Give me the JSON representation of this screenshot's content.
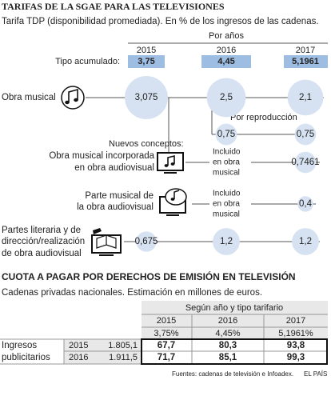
{
  "header": {
    "title": "TARIFAS DE LA SGAE PARA LAS TELEVISIONES",
    "subtitle": "Tarifa TDP (disponibilidad promediada). En % de los ingresos de las cadenas."
  },
  "tariffs": {
    "group_label": "Por años",
    "years": [
      "2015",
      "2016",
      "2017"
    ],
    "accumulated_label": "Tipo acumulado:",
    "accumulated": [
      "3,75",
      "4,45",
      "5,1961"
    ],
    "reproduction_label": "Por reproducción",
    "new_concepts_label": "Nuevos conceptos:",
    "rows": [
      {
        "label_lines": [
          "Obra musical"
        ],
        "values": [
          {
            "value": 3.075,
            "label": "3,075"
          },
          {
            "value": 2.5,
            "label": "2,5"
          },
          {
            "value": 2.1,
            "label": "2,1"
          }
        ],
        "reproduction": [
          {
            "value": 0.75,
            "label": "0,75"
          },
          {
            "value": 0.75,
            "label": "0,75"
          }
        ]
      },
      {
        "label_lines": [
          "Obra musical incorporada",
          "en obra audiovisual"
        ],
        "included_lines": [
          "Incluido",
          "en obra",
          "musical"
        ],
        "values": [
          {
            "value": 0.7461,
            "label": "0,7461"
          }
        ]
      },
      {
        "label_lines": [
          "Parte musical de",
          "la obra audiovisual"
        ],
        "included_lines": [
          "Incluido",
          "en obra",
          "musical"
        ],
        "values": [
          {
            "value": 0.4,
            "label": "0,4"
          }
        ]
      },
      {
        "label_lines": [
          "Partes literaria y de",
          "dirección/realización",
          "de obra audiovisual"
        ],
        "values": [
          {
            "value": 0.675,
            "label": "0,675"
          },
          {
            "value": 1.2,
            "label": "1,2"
          },
          {
            "value": 1.2,
            "label": "1,2"
          }
        ]
      }
    ]
  },
  "quota": {
    "title": "CUOTA A PAGAR POR DERECHOS DE EMISIÓN EN TELEVISIÓN",
    "subtitle": "Cadenas privadas nacionales. Estimación en millones de euros.",
    "table": {
      "header": "Según año y tipo tarifario",
      "years": [
        "2015",
        "2016",
        "2017"
      ],
      "rates": [
        "3,75%",
        "4,45%",
        "5,1961%"
      ],
      "row_label_lines": [
        "Ingresos",
        "publicitarios"
      ],
      "rows": [
        {
          "year": "2015",
          "revenue": "1.805,1",
          "values": [
            "67,7",
            "80,3",
            "93,8"
          ]
        },
        {
          "year": "2016",
          "revenue": "1.911,5",
          "values": [
            "71,7",
            "85,1",
            "99,3"
          ]
        }
      ]
    }
  },
  "footer": {
    "source": "Fuentes: cadenas de televisión e Infoadex.",
    "brand": "EL PAÍS"
  }
}
